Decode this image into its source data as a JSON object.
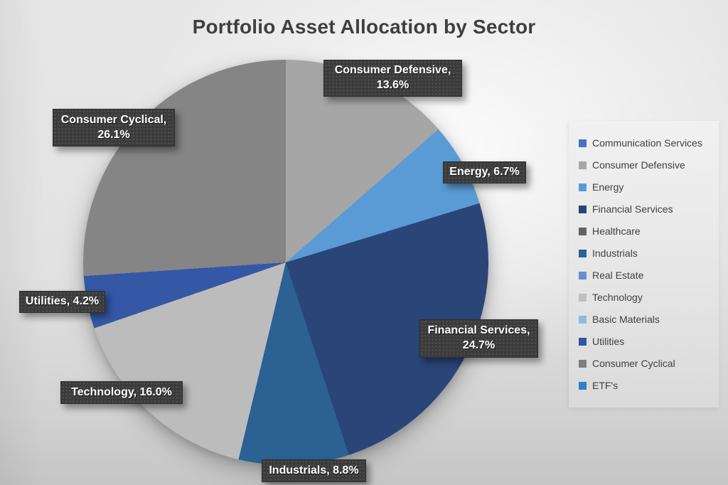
{
  "title": "Portfolio Asset Allocation by Sector",
  "chart_data": {
    "type": "pie",
    "title": "Portfolio Asset Allocation by Sector",
    "unit": "%",
    "start_angle_deg": 0,
    "direction": "clockwise",
    "grid": false,
    "legend_position": "right",
    "slices": [
      {
        "label": "Consumer Defensive",
        "value": 13.6,
        "color": "#A6A6A6",
        "callout": "Consumer Defensive,\n13.6%"
      },
      {
        "label": "Energy",
        "value": 6.7,
        "color": "#5B9BD5",
        "callout": "Energy, 6.7%"
      },
      {
        "label": "Financial Services",
        "value": 24.7,
        "color": "#2A4578",
        "callout": "Financial Services,\n24.7%"
      },
      {
        "label": "Industrials",
        "value": 8.8,
        "color": "#2B6193",
        "callout": "Industrials, 8.8%"
      },
      {
        "label": "Technology",
        "value": 16.0,
        "color": "#BCBCBC",
        "callout": "Technology, 16.0%"
      },
      {
        "label": "Utilities",
        "value": 4.2,
        "color": "#3458A6",
        "callout": "Utilities, 4.2%"
      },
      {
        "label": "Consumer Cyclical",
        "value": 26.1,
        "color": "#858585",
        "callout": "Consumer Cyclical,\n26.1%"
      }
    ],
    "legend": {
      "entries": [
        {
          "label": "Communication Services",
          "color": "#4472C4"
        },
        {
          "label": "Consumer Defensive",
          "color": "#A6A6A6"
        },
        {
          "label": "Energy",
          "color": "#5B9BD5"
        },
        {
          "label": "Financial Services",
          "color": "#264478"
        },
        {
          "label": "Healthcare",
          "color": "#636363"
        },
        {
          "label": "Industrials",
          "color": "#2B6496"
        },
        {
          "label": "Real Estate",
          "color": "#698ED0"
        },
        {
          "label": "Technology",
          "color": "#BFBFBF"
        },
        {
          "label": "Basic Materials",
          "color": "#8FBBE3"
        },
        {
          "label": "Utilities",
          "color": "#2E56A6"
        },
        {
          "label": "Consumer Cyclical",
          "color": "#7F7F7F"
        },
        {
          "label": "ETF's",
          "color": "#2E81C4"
        }
      ]
    }
  }
}
